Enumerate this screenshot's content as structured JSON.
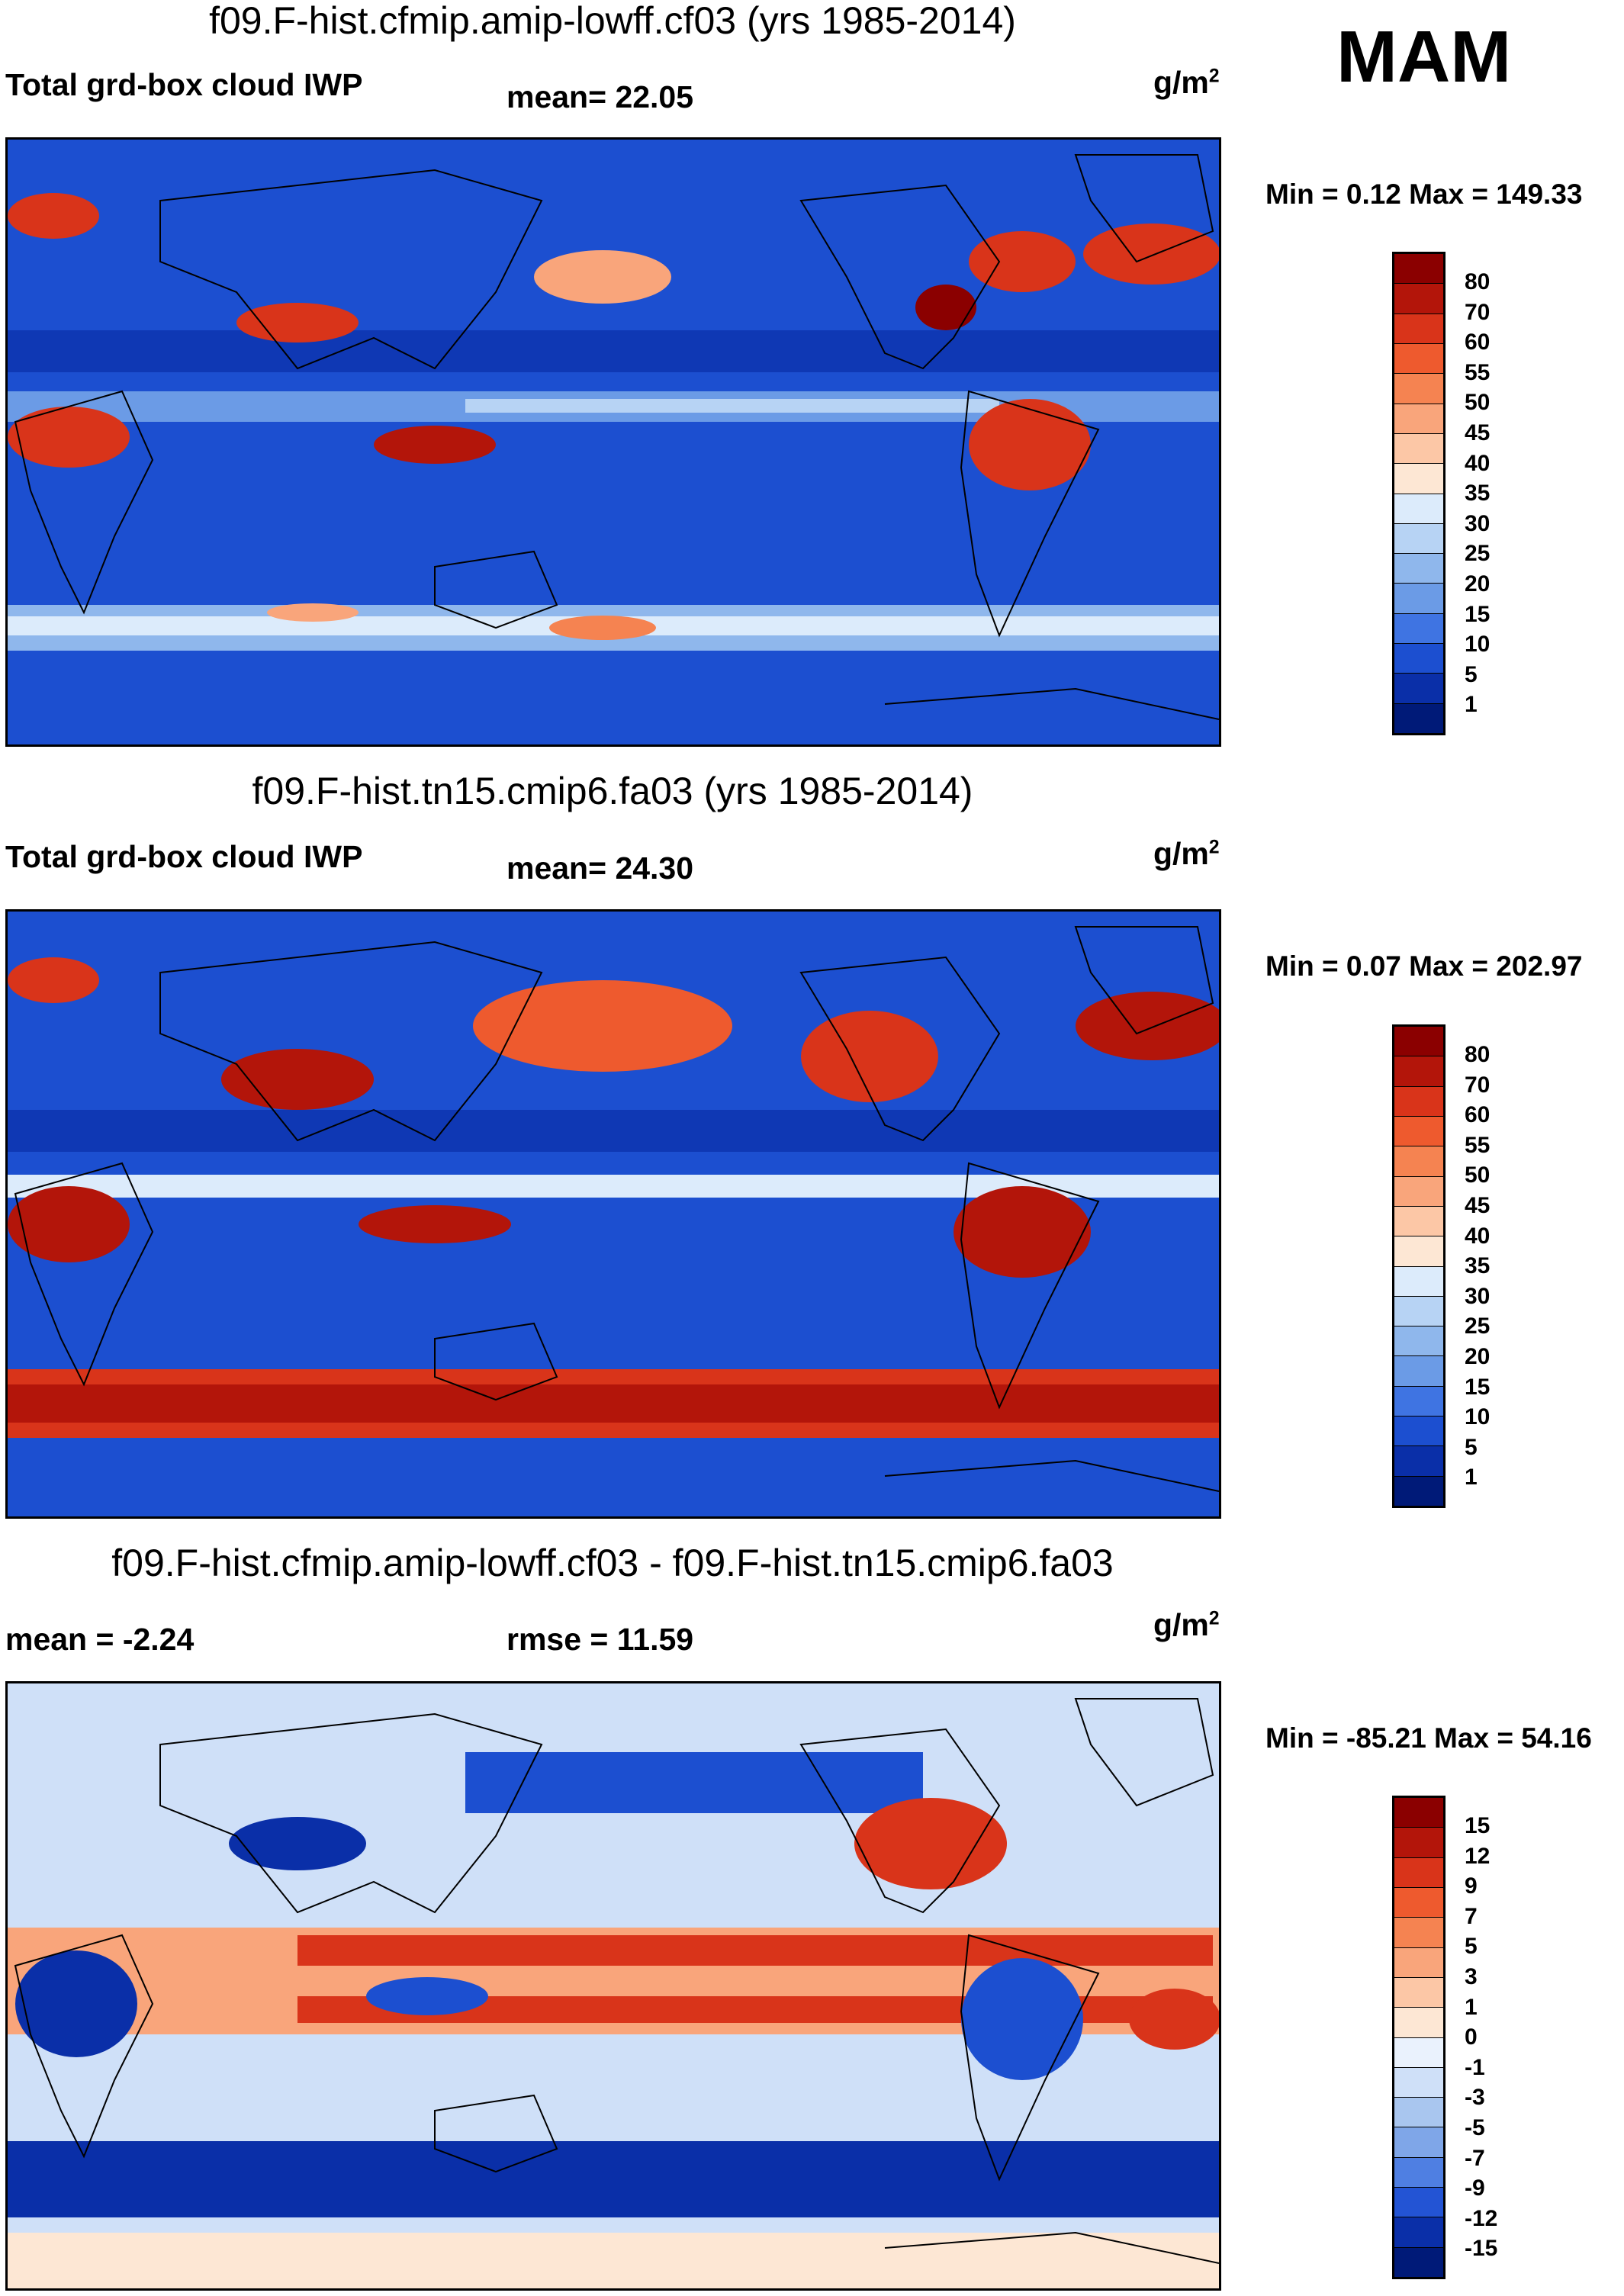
{
  "season": "MAM",
  "panels": [
    {
      "title": "f09.F-hist.cfmip.amip-lowff.cf03 (yrs 1985-2014)",
      "left_label": "Total grd-box cloud IWP",
      "center_label": "mean=  22.05",
      "units": "g/m",
      "units_sup": "2",
      "minmax": "Min =   0.12 Max = 149.33",
      "colorbar_ticks": [
        "80",
        "70",
        "60",
        "55",
        "50",
        "45",
        "40",
        "35",
        "30",
        "25",
        "20",
        "15",
        "10",
        "5",
        "1"
      ],
      "colorbar_colors": [
        "#8b0000",
        "#b3150a",
        "#d9341a",
        "#ee5a2e",
        "#f58351",
        "#f9a57b",
        "#fcc7a6",
        "#fde7d4",
        "#dcebfb",
        "#b7d3f4",
        "#8fb7ec",
        "#6b9be6",
        "#3f74e2",
        "#1c4fd0",
        "#0a2fa8",
        "#001a78"
      ]
    },
    {
      "title": "f09.F-hist.tn15.cmip6.fa03 (yrs 1985-2014)",
      "left_label": "Total grd-box cloud IWP",
      "center_label": "mean=  24.30",
      "units": "g/m",
      "units_sup": "2",
      "minmax": "Min =   0.07 Max = 202.97",
      "colorbar_ticks": [
        "80",
        "70",
        "60",
        "55",
        "50",
        "45",
        "40",
        "35",
        "30",
        "25",
        "20",
        "15",
        "10",
        "5",
        "1"
      ],
      "colorbar_colors": [
        "#8b0000",
        "#b3150a",
        "#d9341a",
        "#ee5a2e",
        "#f58351",
        "#f9a57b",
        "#fcc7a6",
        "#fde7d4",
        "#dcebfb",
        "#b7d3f4",
        "#8fb7ec",
        "#6b9be6",
        "#3f74e2",
        "#1c4fd0",
        "#0a2fa8",
        "#001a78"
      ]
    },
    {
      "title": "f09.F-hist.cfmip.amip-lowff.cf03 - f09.F-hist.tn15.cmip6.fa03",
      "left_label": "mean =  -2.24",
      "center_label": "rmse =  11.59",
      "units": "g/m",
      "units_sup": "2",
      "minmax": "Min = -85.21 Max =  54.16",
      "colorbar_ticks": [
        "15",
        "12",
        "9",
        "7",
        "5",
        "3",
        "1",
        "0",
        "-1",
        "-3",
        "-5",
        "-7",
        "-9",
        "-12",
        "-15"
      ],
      "colorbar_colors": [
        "#8b0000",
        "#b3150a",
        "#d9341a",
        "#ee5a2e",
        "#f58351",
        "#f9a57b",
        "#fcc7a6",
        "#fde7d4",
        "#eaf2fd",
        "#cfe0f8",
        "#a9c6ef",
        "#7fa6e8",
        "#4f7fe2",
        "#2354d4",
        "#0a2fa8",
        "#001a78"
      ]
    }
  ]
}
